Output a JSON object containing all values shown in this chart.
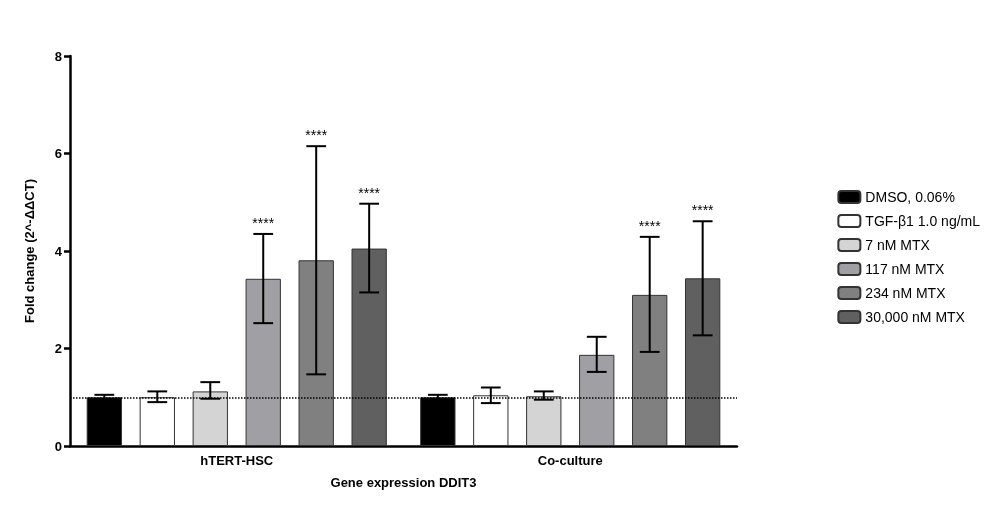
{
  "chart_data": {
    "type": "bar",
    "xlabel": "Gene expression DDIT3",
    "ylabel": "Fold change (2^-ΔΔCT)",
    "categories": [
      "hTERT-HSC",
      "Co-culture"
    ],
    "series": [
      {
        "name": "DMSO, 0.06%",
        "color": "#000000",
        "values": [
          1.0,
          1.0
        ],
        "errors": [
          [
            0.95,
            1.05
          ],
          [
            0.95,
            1.05
          ]
        ]
      },
      {
        "name": "TGF-β1 1.0 ng/mL",
        "color": "#ffffff",
        "values": [
          1.0,
          1.04
        ],
        "errors": [
          [
            0.9,
            1.12
          ],
          [
            0.88,
            1.2
          ]
        ]
      },
      {
        "name": "7 nM MTX",
        "color": "#d4d4d4",
        "values": [
          1.12,
          1.02
        ],
        "errors": [
          [
            0.97,
            1.31
          ],
          [
            0.95,
            1.12
          ]
        ]
      },
      {
        "name": "117 nM MTX",
        "color": "#a0a0a4",
        "values": [
          3.43,
          1.87
        ],
        "errors": [
          [
            2.52,
            4.35
          ],
          [
            1.52,
            2.24
          ]
        ]
      },
      {
        "name": "234 nM MTX",
        "color": "#808080",
        "values": [
          3.81,
          3.1
        ],
        "errors": [
          [
            1.47,
            6.15
          ],
          [
            1.93,
            4.29
          ]
        ]
      },
      {
        "name": "30,000 nM MTX",
        "color": "#606060",
        "values": [
          4.05,
          3.44
        ],
        "errors": [
          [
            3.15,
            4.97
          ],
          [
            2.27,
            4.61
          ]
        ]
      }
    ],
    "annotations": [
      "****",
      "****",
      "****",
      "****",
      "****"
    ],
    "ylim": [
      0,
      8
    ],
    "yticks": [
      0,
      2,
      4,
      6,
      8
    ],
    "grid": false,
    "legend": "right",
    "ref_lines": [
      {
        "axis": "y",
        "value": 1,
        "line_style": "dotted",
        "color": "#000000"
      }
    ]
  }
}
